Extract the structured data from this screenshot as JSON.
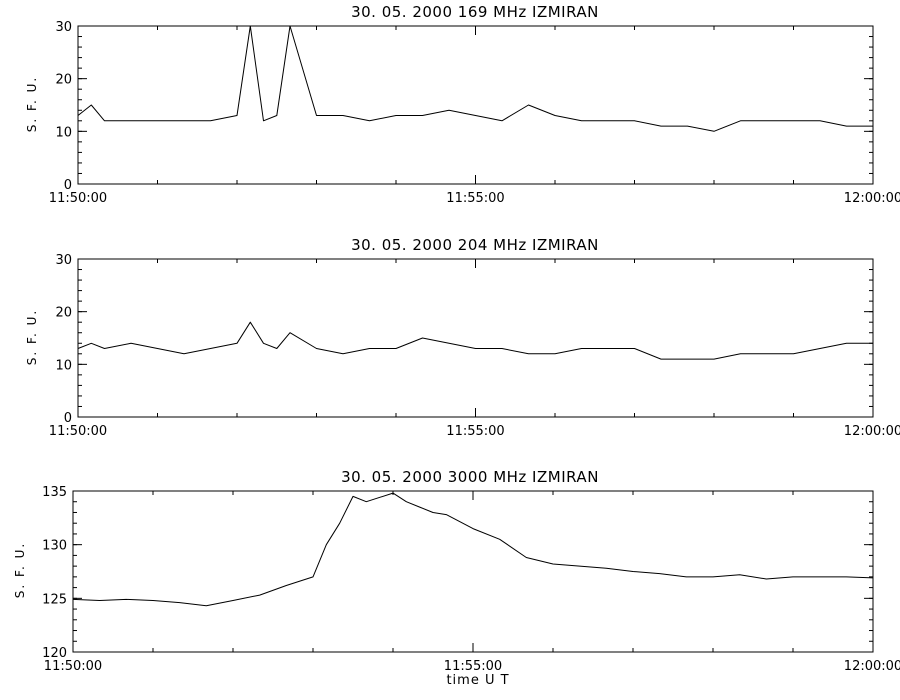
{
  "chart_data": [
    {
      "type": "line",
      "title": "30. 05. 2000 169 MHz IZMIRAN",
      "ylabel": "S. F. U.",
      "xlabel": "",
      "ylim": [
        0,
        30
      ],
      "yticks": [
        0,
        10,
        20,
        30
      ],
      "xlim": [
        "11:50:00",
        "12:00:00"
      ],
      "xticks": [
        "11:50:00",
        "11:55:00",
        "12:00:00"
      ],
      "grid": false,
      "series": [
        {
          "x": [
            "11:50:00",
            "11:50:10",
            "11:50:20",
            "11:50:40",
            "11:51:00",
            "11:51:20",
            "11:51:40",
            "11:52:00",
            "11:52:10",
            "11:52:20",
            "11:52:30",
            "11:52:40",
            "11:53:00",
            "11:53:20",
            "11:53:40",
            "11:54:00",
            "11:54:20",
            "11:54:40",
            "11:55:00",
            "11:55:20",
            "11:55:40",
            "11:56:00",
            "11:56:20",
            "11:56:40",
            "11:57:00",
            "11:57:20",
            "11:57:40",
            "11:58:00",
            "11:58:20",
            "11:58:40",
            "11:59:00",
            "11:59:20",
            "11:59:40",
            "12:00:00"
          ],
          "y": [
            13,
            15,
            12,
            12,
            12,
            12,
            12,
            13,
            30,
            12,
            13,
            30,
            13,
            13,
            12,
            13,
            13,
            14,
            13,
            12,
            15,
            13,
            12,
            12,
            12,
            11,
            11,
            10,
            12,
            12,
            12,
            12,
            11,
            11
          ]
        }
      ]
    },
    {
      "type": "line",
      "title": "30. 05. 2000 204 MHz IZMIRAN",
      "ylabel": "S. F. U.",
      "xlabel": "",
      "ylim": [
        0,
        30
      ],
      "yticks": [
        0,
        10,
        20,
        30
      ],
      "xlim": [
        "11:50:00",
        "12:00:00"
      ],
      "xticks": [
        "11:50:00",
        "11:55:00",
        "12:00:00"
      ],
      "grid": false,
      "series": [
        {
          "x": [
            "11:50:00",
            "11:50:10",
            "11:50:20",
            "11:50:40",
            "11:51:00",
            "11:51:20",
            "11:51:40",
            "11:52:00",
            "11:52:10",
            "11:52:20",
            "11:52:30",
            "11:52:40",
            "11:53:00",
            "11:53:20",
            "11:53:40",
            "11:54:00",
            "11:54:20",
            "11:54:40",
            "11:55:00",
            "11:55:20",
            "11:55:40",
            "11:56:00",
            "11:56:20",
            "11:56:40",
            "11:57:00",
            "11:57:20",
            "11:57:40",
            "11:58:00",
            "11:58:20",
            "11:58:40",
            "11:59:00",
            "11:59:20",
            "11:59:40",
            "12:00:00"
          ],
          "y": [
            13,
            14,
            13,
            14,
            13,
            12,
            13,
            14,
            18,
            14,
            13,
            16,
            13,
            12,
            13,
            13,
            15,
            14,
            13,
            13,
            12,
            12,
            13,
            13,
            13,
            11,
            11,
            11,
            12,
            12,
            12,
            13,
            14,
            14
          ]
        }
      ]
    },
    {
      "type": "line",
      "title": "30. 05. 2000 3000 MHz IZMIRAN",
      "ylabel": "S. F. U.",
      "xlabel": "time U T",
      "ylim": [
        120,
        135
      ],
      "yticks": [
        120,
        125,
        130,
        135
      ],
      "xlim": [
        "11:50:00",
        "12:00:00"
      ],
      "xticks": [
        "11:50:00",
        "11:55:00",
        "12:00:00"
      ],
      "grid": false,
      "series": [
        {
          "x": [
            "11:50:00",
            "11:50:20",
            "11:50:40",
            "11:51:00",
            "11:51:20",
            "11:51:40",
            "11:52:00",
            "11:52:20",
            "11:52:40",
            "11:53:00",
            "11:53:10",
            "11:53:20",
            "11:53:30",
            "11:53:40",
            "11:54:00",
            "11:54:10",
            "11:54:20",
            "11:54:30",
            "11:54:40",
            "11:55:00",
            "11:55:20",
            "11:55:40",
            "11:56:00",
            "11:56:20",
            "11:56:40",
            "11:57:00",
            "11:57:20",
            "11:57:40",
            "11:58:00",
            "11:58:20",
            "11:58:40",
            "11:59:00",
            "11:59:20",
            "11:59:40",
            "12:00:00"
          ],
          "y": [
            124.9,
            124.8,
            124.9,
            124.8,
            124.6,
            124.3,
            124.8,
            125.3,
            126.2,
            127.0,
            130.0,
            132.0,
            134.5,
            134.0,
            134.8,
            134.0,
            133.5,
            133.0,
            132.8,
            131.5,
            130.5,
            128.8,
            128.2,
            128.0,
            127.8,
            127.5,
            127.3,
            127.0,
            127.0,
            127.2,
            126.8,
            127.0,
            127.0,
            127.0,
            126.9
          ]
        }
      ]
    }
  ]
}
